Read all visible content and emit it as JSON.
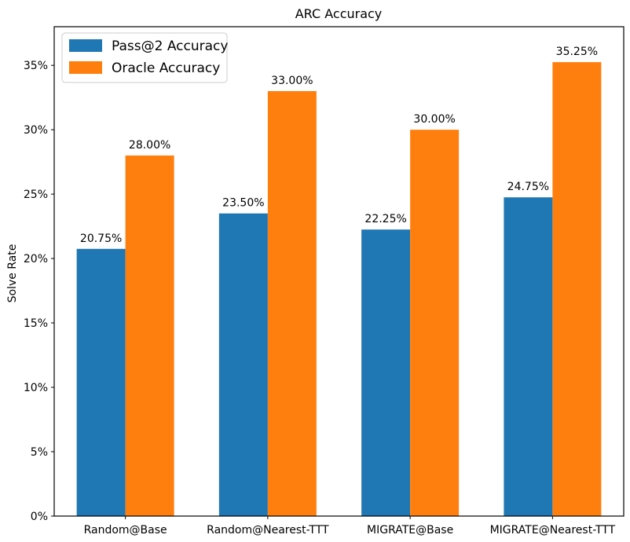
{
  "chart_data": {
    "type": "bar",
    "title": "ARC Accuracy",
    "xlabel": "",
    "ylabel": "Solve Rate",
    "categories": [
      "Random@Base",
      "Random@Nearest-TTT",
      "MIGRATE@Base",
      "MIGRATE@Nearest-TTT"
    ],
    "series": [
      {
        "name": "Pass@2 Accuracy",
        "values": [
          20.75,
          23.5,
          22.25,
          24.75
        ],
        "color": "#1f77b4",
        "labels": [
          "20.75%",
          "23.50%",
          "22.25%",
          "24.75%"
        ]
      },
      {
        "name": "Oracle Accuracy",
        "values": [
          28.0,
          33.0,
          30.0,
          35.25
        ],
        "color": "#ff7f0e",
        "labels": [
          "28.00%",
          "33.00%",
          "30.00%",
          "35.25%"
        ]
      }
    ],
    "ylim": [
      0,
      38
    ],
    "yticks": [
      0,
      5,
      10,
      15,
      20,
      25,
      30,
      35
    ],
    "ytick_labels": [
      "0%",
      "5%",
      "10%",
      "15%",
      "20%",
      "25%",
      "30%",
      "35%"
    ],
    "legend": "top-left",
    "grid": false
  }
}
